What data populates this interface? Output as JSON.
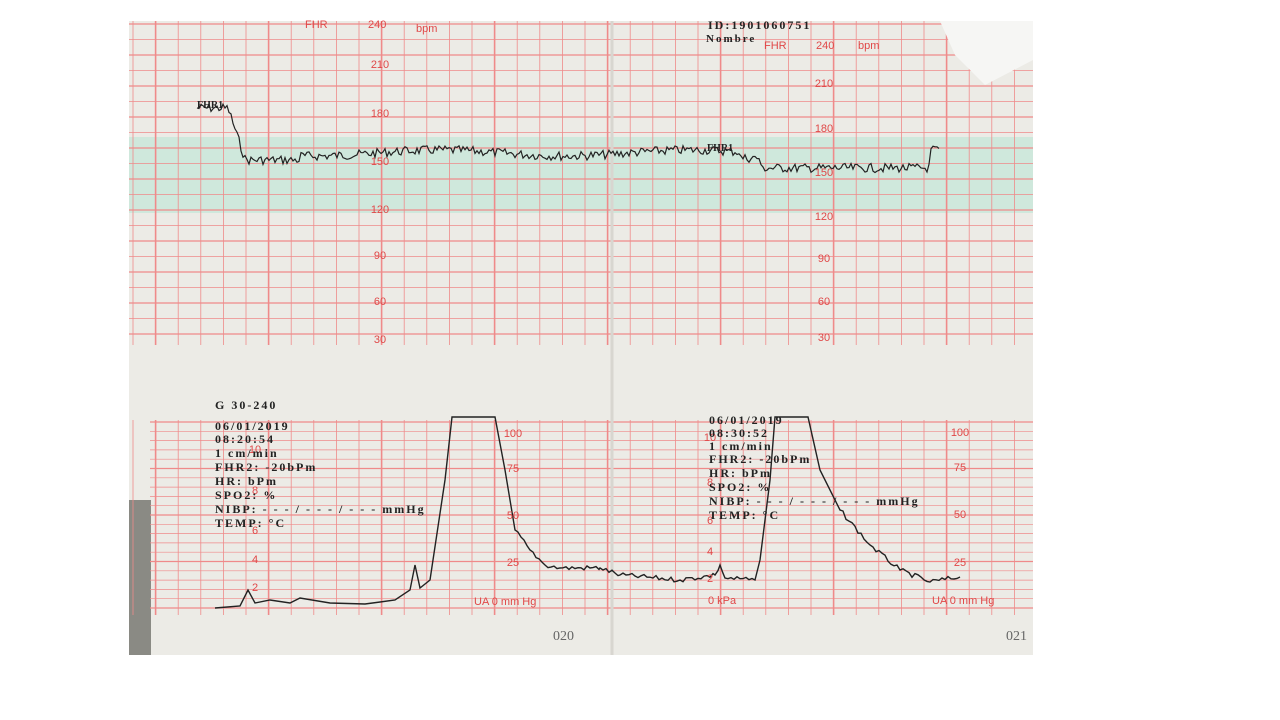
{
  "fhr_panel": {
    "scale_label": "FHR",
    "scale_top": "240",
    "unit": "bpm",
    "ticks": [
      "210",
      "180",
      "150",
      "120",
      "90",
      "60",
      "30"
    ],
    "id": "ID:1901060751",
    "name_label": "Nombre",
    "trace_label": "FHR1"
  },
  "left_record": {
    "scale": "G 30-240",
    "date": "06/01/2019",
    "time": "08:20:54",
    "speed": "1 cm/min",
    "fhr2": "FHR2: -20bPm",
    "hr": "HR:     bPm",
    "spo2": "SPO2:      %",
    "nibp": "NIBP: - - - / - - - / - - - mmHg",
    "temp": "TEMP:        °C"
  },
  "right_record": {
    "date": "06/01/2019",
    "time": "08:30:52",
    "speed": "1 cm/min",
    "fhr2": "FHR2: -20bPm",
    "hr": "HR:     bPm",
    "spo2": "SPO2:      %",
    "nibp": "NIBP: - - - / - - - / - - - mmHg",
    "temp": "TEMP:        °C"
  },
  "ua_panel": {
    "ticks": [
      "100",
      "75",
      "50",
      "25"
    ],
    "axis_label": "UA  0  mm Hg",
    "kpa_ticks": [
      "10",
      "8",
      "6",
      "4",
      "2"
    ],
    "kpa_label": "0  kPa"
  },
  "page_numbers": [
    "020",
    "021"
  ]
}
